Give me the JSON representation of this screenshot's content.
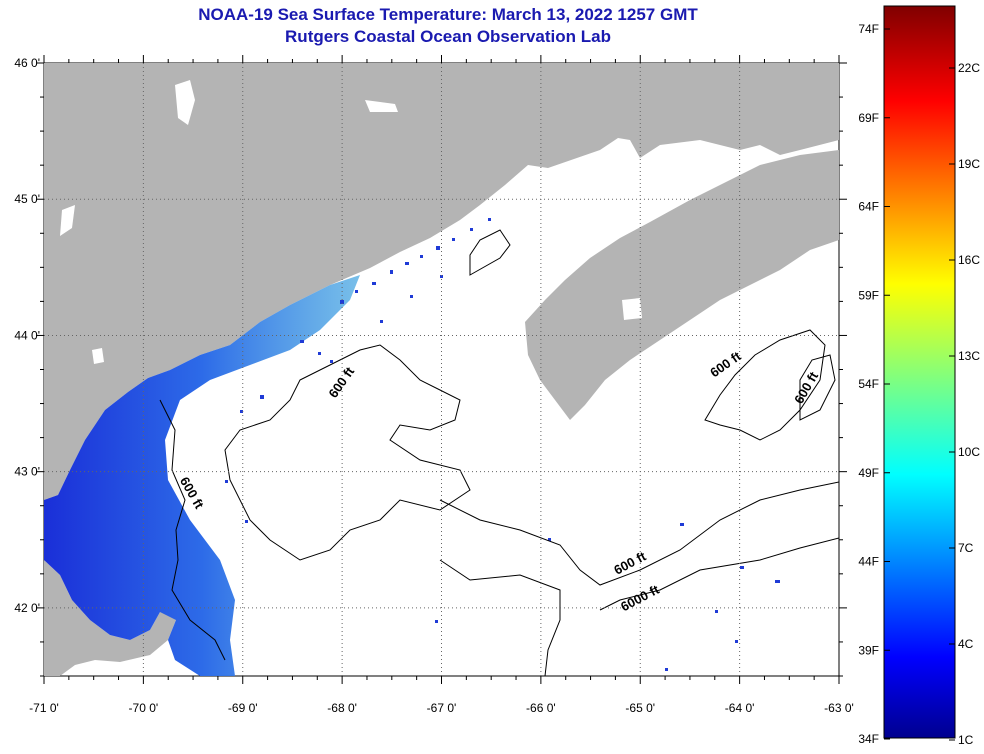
{
  "map": {
    "title": "NOAA-19 Sea Surface Temperature:  March 13, 2022 1257 GMT",
    "subtitle": "Rutgers Coastal Ocean Observation Lab",
    "lon_labels": [
      "-71 0'",
      "-70 0'",
      "-69 0'",
      "-68 0'",
      "-67 0'",
      "-66 0'",
      "-65 0'",
      "-64 0'",
      "-63 0'"
    ],
    "lat_labels": [
      "46 0'",
      "45 0'",
      "44 0'",
      "43 0'",
      "42 0'"
    ],
    "lon_range": [
      -71,
      -63
    ],
    "lat_range": [
      41.5,
      46
    ],
    "contour_labels": [
      {
        "text": "600 ft"
      },
      {
        "text": "600 ft"
      },
      {
        "text": "600 ft"
      },
      {
        "text": "600 ft"
      },
      {
        "text": "600 ft"
      },
      {
        "text": "6000 ft"
      }
    ],
    "colors": {
      "land": "#b4b4b4",
      "ocean": "#ffffff",
      "title": "#1a1ab0",
      "contour": "#000000"
    }
  },
  "colorbar": {
    "fahrenheit_labels": [
      "74F",
      "69F",
      "64F",
      "59F",
      "54F",
      "49F",
      "44F",
      "39F",
      "34F"
    ],
    "celsius_labels": [
      "22C",
      "19C",
      "16C",
      "13C",
      "10C",
      "7C",
      "4C",
      "1C"
    ],
    "range_f": [
      34,
      76
    ],
    "scheme": "jet"
  }
}
